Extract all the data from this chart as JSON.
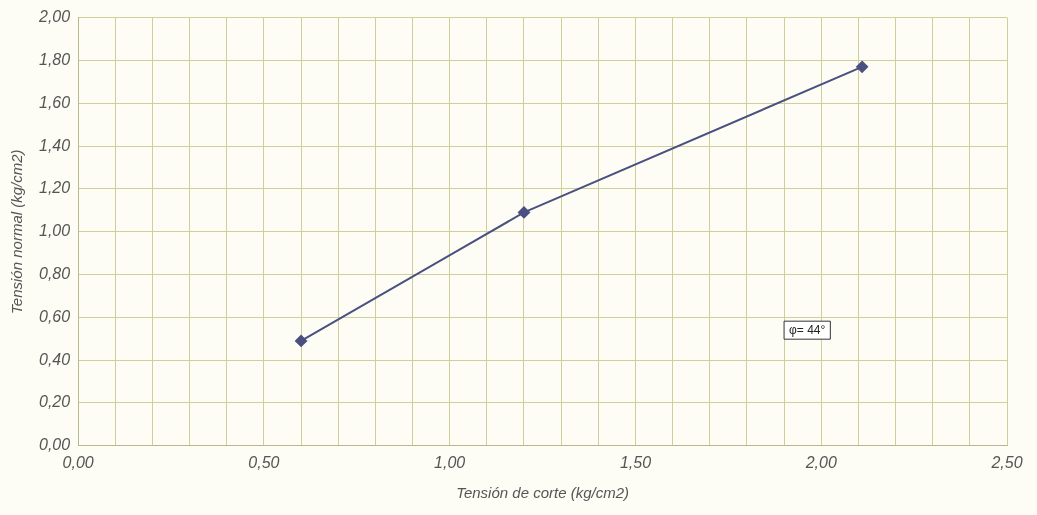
{
  "chart_data": {
    "type": "line",
    "xlabel": "Tensión de corte (kg/cm2)",
    "ylabel": "Tensión normal (kg/cm2)",
    "x": [
      0.6,
      1.2,
      2.11
    ],
    "series": [
      {
        "color": "#4a5080",
        "values": [
          0.49,
          1.09,
          1.77
        ]
      }
    ],
    "xlim": [
      0,
      2.5
    ],
    "xticks": [
      {
        "value": 0,
        "label": "0,00"
      },
      {
        "value": 0.1,
        "label": null
      },
      {
        "value": 0.2,
        "label": null
      },
      {
        "value": 0.3,
        "label": null
      },
      {
        "value": 0.4,
        "label": null
      },
      {
        "value": 0.5,
        "label": "0,50"
      },
      {
        "value": 0.6,
        "label": null
      },
      {
        "value": 0.7,
        "label": null
      },
      {
        "value": 0.8,
        "label": null
      },
      {
        "value": 0.9,
        "label": null
      },
      {
        "value": 1,
        "label": "1,00"
      },
      {
        "value": 1.1,
        "label": null
      },
      {
        "value": 1.2,
        "label": null
      },
      {
        "value": 1.3,
        "label": null
      },
      {
        "value": 1.4,
        "label": null
      },
      {
        "value": 1.5,
        "label": "1,50"
      },
      {
        "value": 1.6,
        "label": null
      },
      {
        "value": 1.7,
        "label": null
      },
      {
        "value": 1.8,
        "label": null
      },
      {
        "value": 1.9,
        "label": null
      },
      {
        "value": 2,
        "label": "2,00"
      },
      {
        "value": 2.1,
        "label": null
      },
      {
        "value": 2.2,
        "label": null
      },
      {
        "value": 2.3,
        "label": null
      },
      {
        "value": 2.4,
        "label": null
      },
      {
        "value": 2.5,
        "label": "2,50"
      }
    ],
    "ylim": [
      0,
      2
    ],
    "yticks": [
      {
        "value": 0,
        "label": "0,00"
      },
      {
        "value": 0.2,
        "label": "0,20"
      },
      {
        "value": 0.4,
        "label": "0,40"
      },
      {
        "value": 0.6,
        "label": "0,60"
      },
      {
        "value": 0.8,
        "label": "0,80"
      },
      {
        "value": 1,
        "label": "1,00"
      },
      {
        "value": 1.2,
        "label": "1,20"
      },
      {
        "value": 1.4,
        "label": "1,40"
      },
      {
        "value": 1.6,
        "label": "1,60"
      },
      {
        "value": 1.8,
        "label": "1,80"
      },
      {
        "value": 2,
        "label": "2,00"
      }
    ],
    "grid": true,
    "legend": false,
    "marker": "diamond",
    "line_style": "solid",
    "annotations": [
      "φ= 44°"
    ]
  }
}
